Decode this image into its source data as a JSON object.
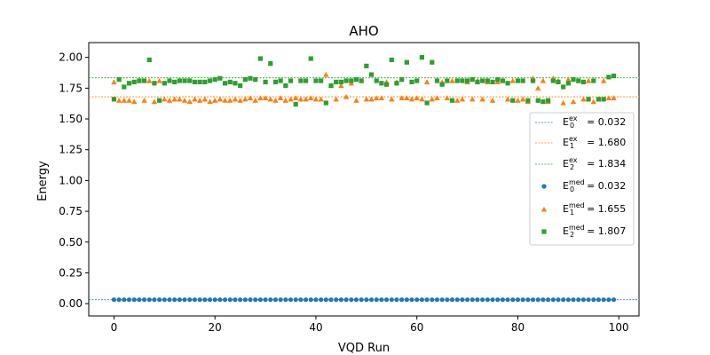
{
  "chart_data": {
    "type": "scatter",
    "title": "AHO",
    "xlabel": "VQD Run",
    "ylabel": "Energy",
    "xlim": [
      -5,
      104
    ],
    "ylim": [
      -0.1,
      2.12
    ],
    "xticks": [
      0,
      20,
      40,
      60,
      80,
      100
    ],
    "xtick_labels": [
      "0",
      "20",
      "40",
      "60",
      "80",
      "100"
    ],
    "yticks": [
      0.0,
      0.25,
      0.5,
      0.75,
      1.0,
      1.25,
      1.5,
      1.75,
      2.0
    ],
    "ytick_labels": [
      "0.00",
      "0.25",
      "0.50",
      "0.75",
      "1.00",
      "1.25",
      "1.50",
      "1.75",
      "2.00"
    ],
    "grid": false,
    "legend_position": "center-right",
    "reference_lines": [
      {
        "level": 0,
        "value": 0.032,
        "legend_base": "E",
        "legend_sub": "0",
        "legend_sup": "ex",
        "legend_value": "= 0.032",
        "color": "#1f77b4"
      },
      {
        "level": 1,
        "value": 1.68,
        "legend_base": "E",
        "legend_sub": "1",
        "legend_sup": "ex",
        "legend_value": "= 1.680",
        "color": "#ff7f0e"
      },
      {
        "level": 2,
        "value": 1.834,
        "legend_base": "E",
        "legend_sub": "2",
        "legend_sup": "ex",
        "legend_value": "= 1.834",
        "color": "#2ca02c"
      }
    ],
    "series": [
      {
        "level": 0,
        "marker": "circle",
        "color": "#1f77b4",
        "legend_base": "E",
        "legend_sub": "0",
        "legend_sup": "med",
        "legend_value": "= 0.032",
        "y": [
          0.032,
          0.032,
          0.032,
          0.032,
          0.032,
          0.032,
          0.032,
          0.032,
          0.032,
          0.032,
          0.032,
          0.032,
          0.032,
          0.032,
          0.032,
          0.032,
          0.032,
          0.032,
          0.032,
          0.032,
          0.032,
          0.032,
          0.032,
          0.032,
          0.032,
          0.032,
          0.032,
          0.032,
          0.032,
          0.032,
          0.032,
          0.032,
          0.032,
          0.032,
          0.032,
          0.032,
          0.032,
          0.032,
          0.032,
          0.032,
          0.032,
          0.032,
          0.032,
          0.032,
          0.032,
          0.032,
          0.032,
          0.032,
          0.032,
          0.032,
          0.032,
          0.032,
          0.032,
          0.032,
          0.032,
          0.032,
          0.032,
          0.032,
          0.032,
          0.032,
          0.032,
          0.032,
          0.032,
          0.032,
          0.032,
          0.032,
          0.032,
          0.032,
          0.032,
          0.032,
          0.032,
          0.032,
          0.032,
          0.032,
          0.032,
          0.032,
          0.032,
          0.032,
          0.032,
          0.032,
          0.032,
          0.032,
          0.032,
          0.032,
          0.032,
          0.032,
          0.032,
          0.032,
          0.032,
          0.032,
          0.032,
          0.032,
          0.032,
          0.032,
          0.032,
          0.032,
          0.032,
          0.032,
          0.032,
          0.032
        ]
      },
      {
        "level": 1,
        "marker": "triangle",
        "color": "#ff7f0e",
        "legend_base": "E",
        "legend_sub": "1",
        "legend_sup": "med",
        "legend_value": "= 1.655",
        "y": [
          1.8,
          1.65,
          1.65,
          1.65,
          1.64,
          1.81,
          1.65,
          1.81,
          1.64,
          1.81,
          1.66,
          1.65,
          1.66,
          1.66,
          1.65,
          1.64,
          1.66,
          1.65,
          1.66,
          1.64,
          1.65,
          1.66,
          1.65,
          1.65,
          1.66,
          1.65,
          1.66,
          1.67,
          1.65,
          1.67,
          1.67,
          1.66,
          1.65,
          1.67,
          1.65,
          1.66,
          1.67,
          1.66,
          1.66,
          1.67,
          1.66,
          1.66,
          1.86,
          1.77,
          1.66,
          1.77,
          1.68,
          1.79,
          1.65,
          1.81,
          1.66,
          1.66,
          1.67,
          1.67,
          1.8,
          1.66,
          1.8,
          1.67,
          1.67,
          1.66,
          1.67,
          1.66,
          1.8,
          1.66,
          1.67,
          1.8,
          1.67,
          1.81,
          1.65,
          1.66,
          1.8,
          1.66,
          1.81,
          1.66,
          1.8,
          1.65,
          1.8,
          1.81,
          1.66,
          1.81,
          1.65,
          1.66,
          1.64,
          1.83,
          1.75,
          1.81,
          1.64,
          1.83,
          1.81,
          1.63,
          1.82,
          1.64,
          1.81,
          1.66,
          1.81,
          1.64,
          1.66,
          1.81,
          1.67,
          1.67
        ]
      },
      {
        "level": 2,
        "marker": "square",
        "color": "#2ca02c",
        "legend_base": "E",
        "legend_sub": "2",
        "legend_sup": "med",
        "legend_value": "= 1.807",
        "y": [
          1.66,
          1.82,
          1.76,
          1.79,
          1.8,
          1.81,
          1.81,
          1.98,
          1.79,
          1.65,
          1.79,
          1.81,
          1.8,
          1.81,
          1.81,
          1.81,
          1.8,
          1.8,
          1.8,
          1.81,
          1.82,
          1.83,
          1.79,
          1.8,
          1.79,
          1.77,
          1.82,
          1.83,
          1.82,
          1.99,
          1.8,
          1.95,
          1.8,
          1.81,
          1.77,
          1.81,
          1.62,
          1.81,
          1.81,
          1.99,
          1.81,
          1.81,
          1.63,
          1.77,
          1.8,
          1.8,
          1.81,
          1.81,
          1.82,
          1.81,
          1.93,
          1.86,
          1.81,
          1.79,
          1.78,
          1.98,
          1.79,
          1.82,
          1.96,
          1.8,
          1.81,
          2.0,
          1.63,
          1.96,
          1.81,
          1.78,
          1.81,
          1.65,
          1.81,
          1.81,
          1.81,
          1.82,
          1.8,
          1.81,
          1.81,
          1.8,
          1.82,
          1.81,
          1.79,
          1.65,
          1.81,
          1.81,
          1.65,
          1.81,
          1.65,
          1.64,
          1.65,
          1.81,
          1.8,
          1.76,
          1.79,
          1.82,
          1.81,
          1.8,
          1.66,
          1.81,
          1.66,
          1.66,
          1.84,
          1.85
        ]
      }
    ]
  }
}
